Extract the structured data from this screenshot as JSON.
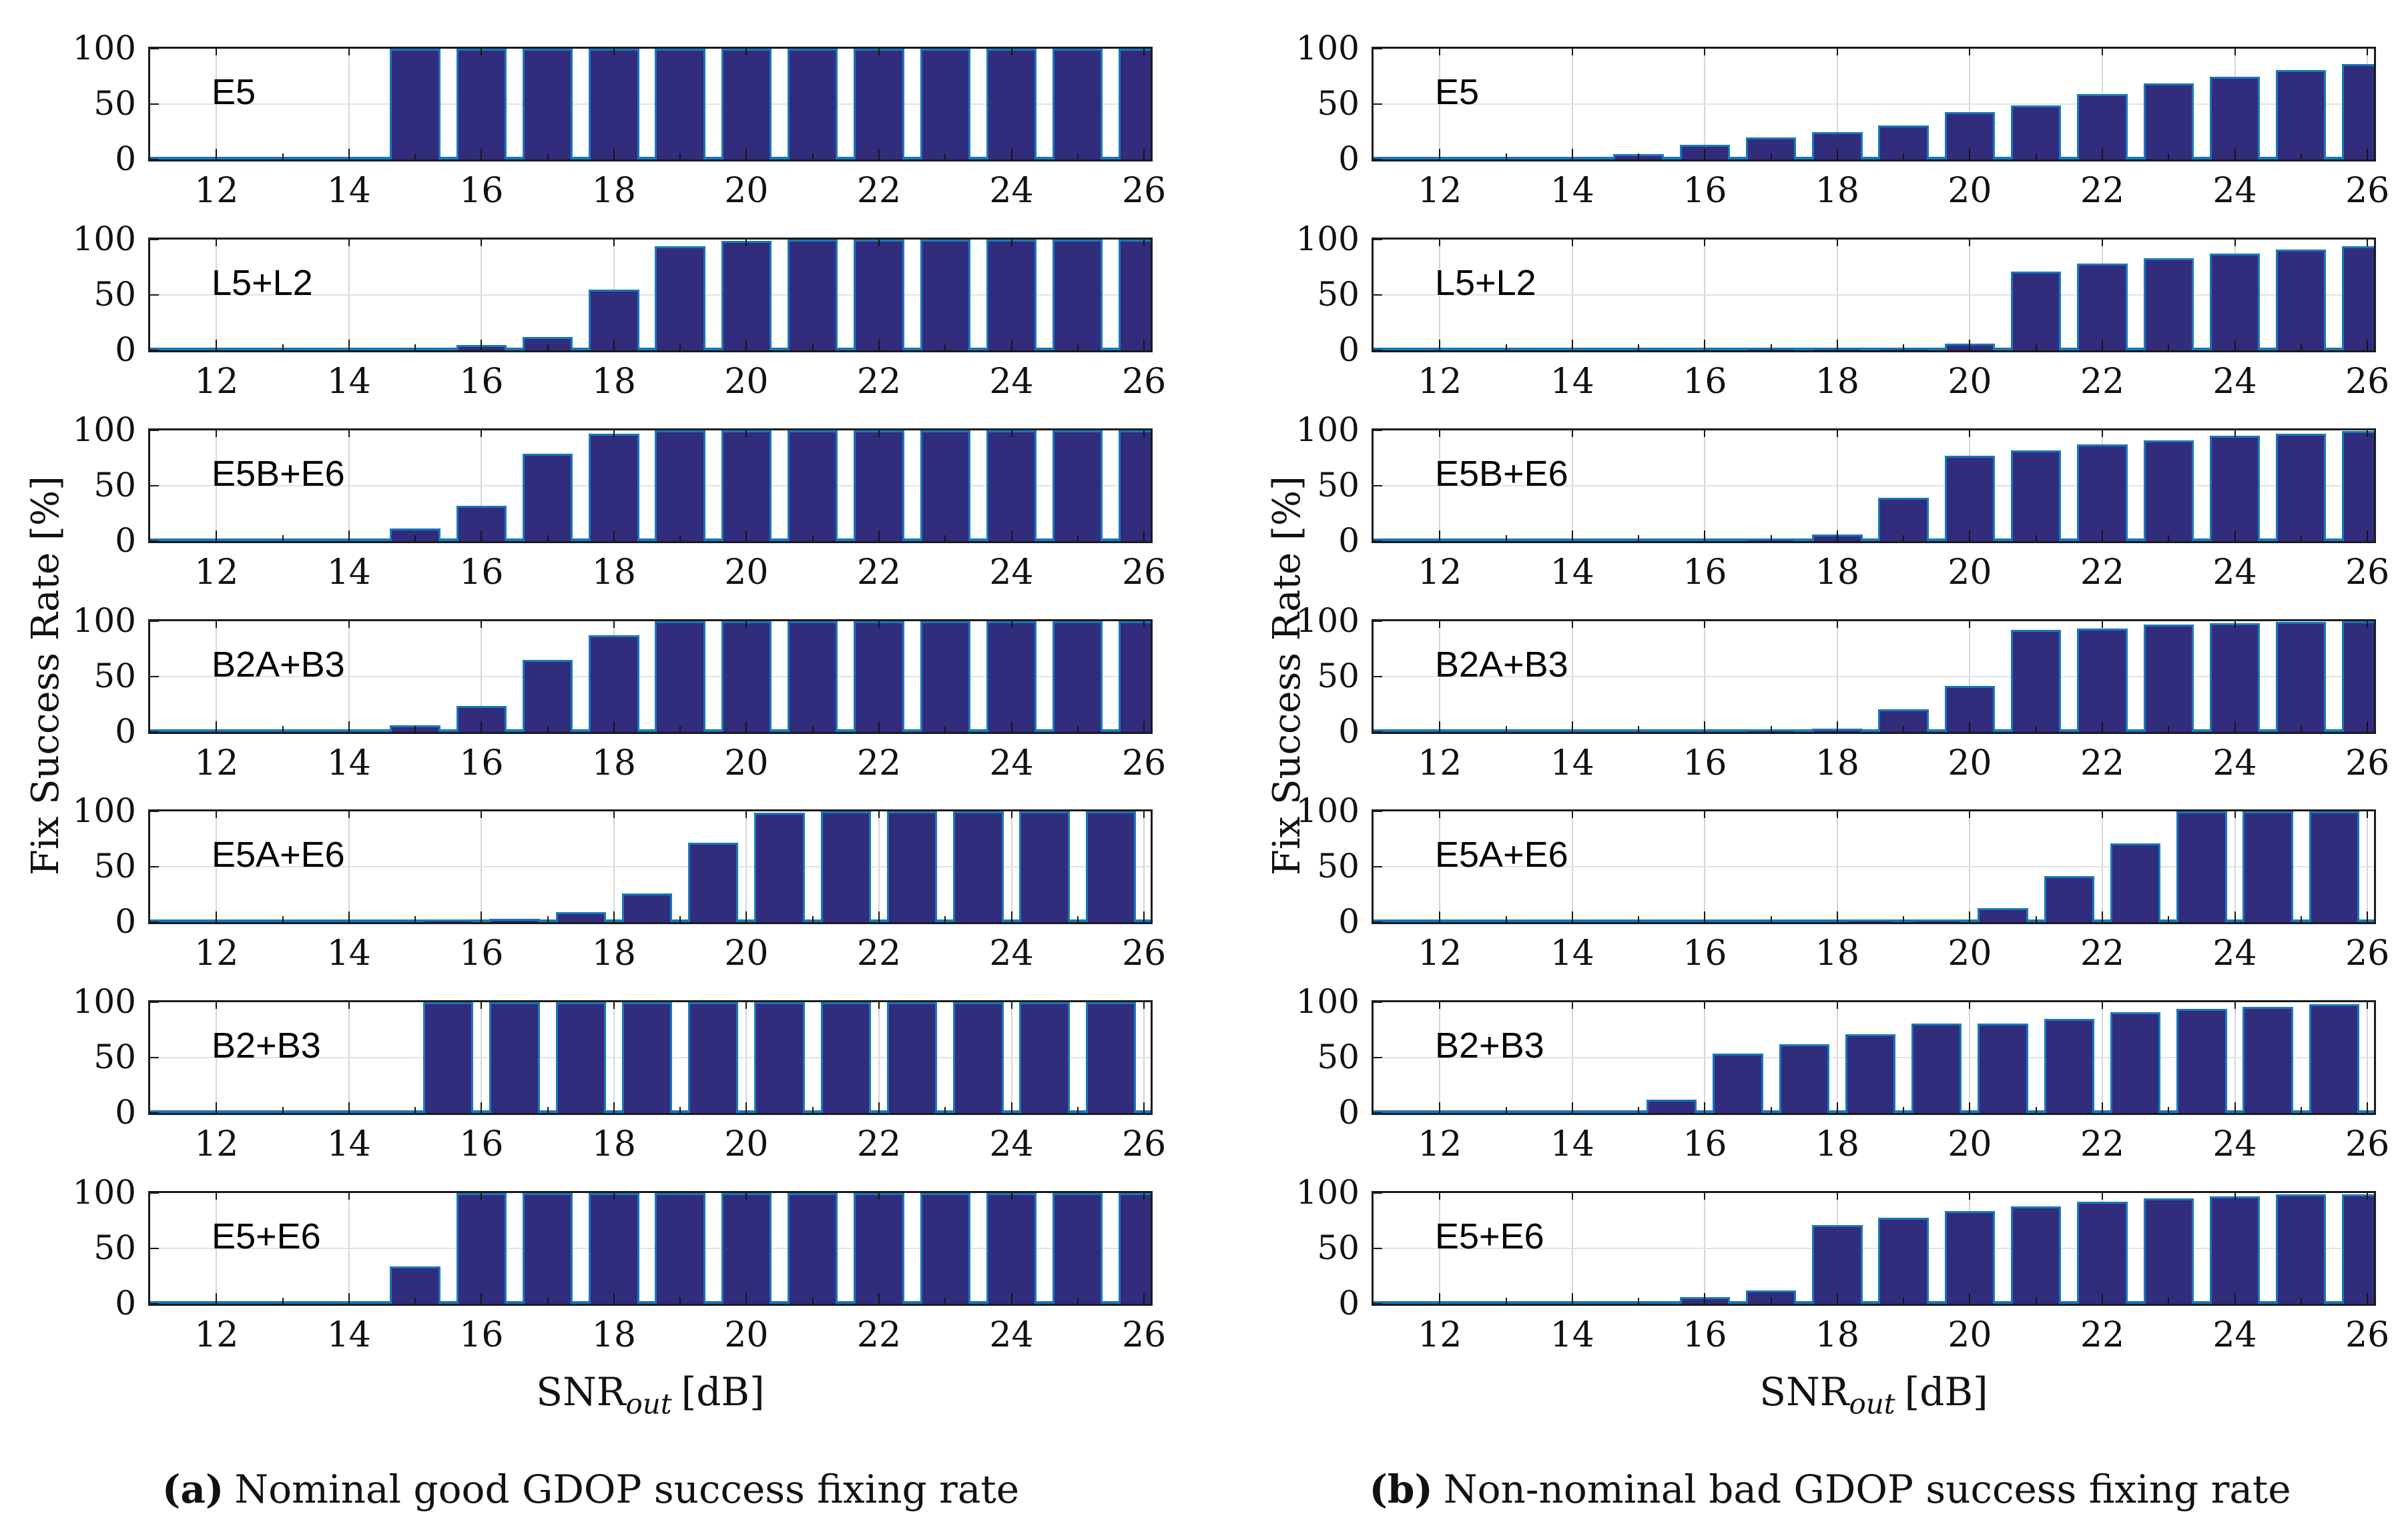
{
  "figure": {
    "ylabel": "Fix Success Rate [%]",
    "xlabel": {
      "prefix": "SNR",
      "sub": "out",
      "unit": "[dB]"
    },
    "captions": {
      "a_tag": "(a)",
      "a_text": "Nominal good GDOP success fixing rate",
      "b_tag": "(b)",
      "b_text": "Non-nominal bad GDOP success fixing rate"
    },
    "axes": {
      "xlim": [
        11,
        26.1
      ],
      "ylim": [
        0,
        100
      ],
      "xticks": [
        12,
        14,
        16,
        18,
        20,
        22,
        24,
        26
      ],
      "minor_xticks": [
        12,
        13,
        14,
        15,
        16,
        17,
        18,
        19,
        20,
        21,
        22,
        23,
        24,
        25,
        26
      ],
      "yticks": [
        0,
        50,
        100
      ],
      "grid": true,
      "xlabel": "SNR_out [dB]",
      "ylabel": "Fix Success Rate [%]"
    },
    "colors": {
      "bar_fill": "#312c7c",
      "bar_edge": "#1778be",
      "grid": "#d6d6d6",
      "spine": "#1b1b1b",
      "text": "#111111"
    }
  },
  "chart_data": [
    {
      "type": "bar",
      "group": "a",
      "panel": 1,
      "label": "E5",
      "x": [
        15,
        16,
        17,
        18,
        19,
        20,
        21,
        22,
        23,
        24,
        25,
        26
      ],
      "values": [
        100,
        100,
        100,
        100,
        100,
        100,
        100,
        100,
        100,
        100,
        100,
        100
      ]
    },
    {
      "type": "bar",
      "group": "a",
      "panel": 2,
      "label": "L5+L2",
      "x": [
        16,
        17,
        18,
        19,
        20,
        21,
        22,
        23,
        24,
        25,
        26
      ],
      "values": [
        5,
        12,
        55,
        94,
        99,
        100,
        100,
        100,
        100,
        100,
        100
      ]
    },
    {
      "type": "bar",
      "group": "a",
      "panel": 3,
      "label": "E5B+E6",
      "x": [
        15,
        16,
        17,
        18,
        19,
        20,
        21,
        22,
        23,
        24,
        25,
        26
      ],
      "values": [
        11,
        32,
        79,
        97,
        100,
        100,
        100,
        100,
        100,
        100,
        100,
        100
      ]
    },
    {
      "type": "bar",
      "group": "a",
      "panel": 4,
      "label": "B2A+B3",
      "x": [
        15,
        16,
        17,
        18,
        19,
        20,
        21,
        22,
        23,
        24,
        25,
        26
      ],
      "values": [
        6,
        23,
        65,
        87,
        100,
        100,
        100,
        100,
        100,
        100,
        100,
        100
      ]
    },
    {
      "type": "bar",
      "group": "a",
      "panel": 5,
      "label": "E5A+E6",
      "x": [
        15.5,
        16.5,
        17.5,
        18.5,
        19.5,
        20.5,
        21.5,
        22.5,
        23.5,
        24.5,
        25.5
      ],
      "values": [
        2,
        3,
        9,
        26,
        72,
        99,
        100,
        100,
        100,
        100,
        100
      ]
    },
    {
      "type": "bar",
      "group": "a",
      "panel": 6,
      "label": "B2+B3",
      "x": [
        15.5,
        16.5,
        17.5,
        18.5,
        19.5,
        20.5,
        21.5,
        22.5,
        23.5,
        24.5,
        25.5
      ],
      "values": [
        100,
        100,
        100,
        100,
        100,
        100,
        100,
        100,
        100,
        100,
        100
      ]
    },
    {
      "type": "bar",
      "group": "a",
      "panel": 7,
      "label": "E5+E6",
      "x": [
        15,
        16,
        17,
        18,
        19,
        20,
        21,
        22,
        23,
        24,
        25,
        26
      ],
      "values": [
        34,
        100,
        100,
        100,
        100,
        100,
        100,
        100,
        100,
        100,
        100,
        100
      ]
    },
    {
      "type": "bar",
      "group": "b",
      "panel": 1,
      "label": "E5",
      "x": [
        15,
        16,
        17,
        18,
        19,
        20,
        21,
        22,
        23,
        24,
        25,
        26
      ],
      "values": [
        5,
        13,
        20,
        25,
        31,
        43,
        49,
        59,
        69,
        75,
        81,
        86
      ]
    },
    {
      "type": "bar",
      "group": "b",
      "panel": 2,
      "label": "L5+L2",
      "x": [
        17,
        18,
        19,
        20,
        21,
        22,
        23,
        24,
        25,
        26
      ],
      "values": [
        1,
        1,
        2,
        6,
        71,
        78,
        83,
        87,
        91,
        94
      ]
    },
    {
      "type": "bar",
      "group": "b",
      "panel": 3,
      "label": "E5B+E6",
      "x": [
        17,
        18,
        19,
        20,
        21,
        22,
        23,
        24,
        25,
        26
      ],
      "values": [
        1,
        6,
        39,
        77,
        82,
        87,
        91,
        95,
        97,
        99
      ]
    },
    {
      "type": "bar",
      "group": "b",
      "panel": 4,
      "label": "B2A+B3",
      "x": [
        17,
        18,
        19,
        20,
        21,
        22,
        23,
        24,
        25,
        26
      ],
      "values": [
        1,
        3,
        20,
        41,
        92,
        93,
        97,
        98,
        99,
        100
      ]
    },
    {
      "type": "bar",
      "group": "b",
      "panel": 5,
      "label": "E5A+E6",
      "x": [
        18.5,
        19.5,
        20.5,
        21.5,
        22.5,
        23.5,
        24.5,
        25.5
      ],
      "values": [
        1,
        2,
        13,
        42,
        71,
        100,
        100,
        100
      ]
    },
    {
      "type": "bar",
      "group": "b",
      "panel": 6,
      "label": "B2+B3",
      "x": [
        15.5,
        16.5,
        17.5,
        18.5,
        19.5,
        20.5,
        21.5,
        22.5,
        23.5,
        24.5,
        25.5
      ],
      "values": [
        12,
        54,
        62,
        71,
        81,
        81,
        85,
        91,
        94,
        96,
        98
      ]
    },
    {
      "type": "bar",
      "group": "b",
      "panel": 7,
      "label": "E5+E6",
      "x": [
        16,
        17,
        18,
        19,
        20,
        21,
        22,
        23,
        24,
        25,
        26
      ],
      "values": [
        6,
        12,
        71,
        78,
        84,
        88,
        92,
        95,
        97,
        99,
        99
      ]
    }
  ]
}
